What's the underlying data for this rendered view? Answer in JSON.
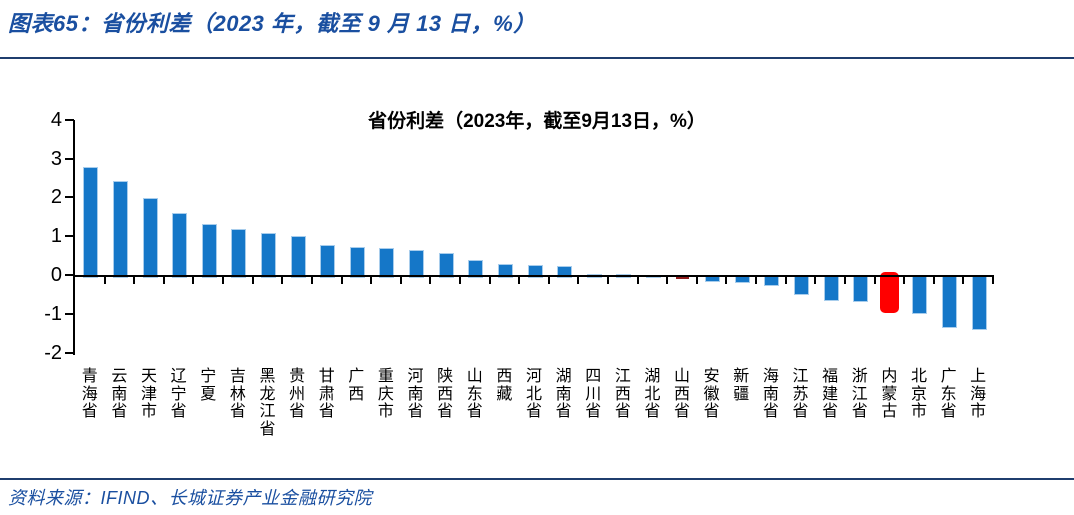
{
  "figure": {
    "title": "图表65：省份利差（2023 年，截至 9 月 13 日，%）",
    "source": "资料来源：IFIND、长城证券产业金融研究院"
  },
  "colors": {
    "rule_blue": "#1F3E6E",
    "title_blue": "#1A4FA0",
    "axis_black": "#000000",
    "bar_blue": "#1577C8",
    "bar_border_light_blue": "#A8CDEC",
    "dark_red": "#8E1B1B",
    "highlight_red": "#FF0000"
  },
  "chart_data": {
    "type": "bar",
    "title": "省份利差（2023年，截至9月13日，%）",
    "xlabel": "",
    "ylabel": "",
    "unit": "%",
    "ylim": [
      -2,
      4
    ],
    "yticks": [
      4,
      3,
      2,
      1,
      0,
      -1,
      -2
    ],
    "grid": false,
    "legend": "none",
    "categories": [
      "青海省",
      "云南省",
      "天津市",
      "辽宁省",
      "宁夏",
      "吉林省",
      "黑龙江省",
      "贵州省",
      "甘肃省",
      "广西",
      "重庆市",
      "河南省",
      "陕西省",
      "山东省",
      "西藏",
      "河北省",
      "湖南省",
      "四川省",
      "江西省",
      "湖北省",
      "山西省",
      "安徽省",
      "新疆",
      "海南省",
      "江苏省",
      "福建省",
      "浙江省",
      "内蒙古",
      "北京市",
      "广东省",
      "上海市"
    ],
    "values": [
      2.8,
      2.46,
      2.02,
      1.62,
      1.35,
      1.21,
      1.11,
      1.04,
      0.8,
      0.75,
      0.73,
      0.66,
      0.6,
      0.41,
      0.32,
      0.29,
      0.27,
      0.06,
      0.06,
      0.01,
      -0.09,
      -0.11,
      -0.14,
      -0.21,
      -0.45,
      -0.6,
      -0.61,
      -0.95,
      -0.93,
      -1.3,
      -1.34
    ],
    "default_bar_color": "#1577C8",
    "bar_border_color": "#A8CDEC",
    "special_bars": [
      {
        "category": "山西省",
        "color": "#8E1B1B",
        "style": "normal-dark-red"
      },
      {
        "category": "内蒙古",
        "color": "#FF0000",
        "style": "rounded-wide-highlight"
      }
    ]
  }
}
